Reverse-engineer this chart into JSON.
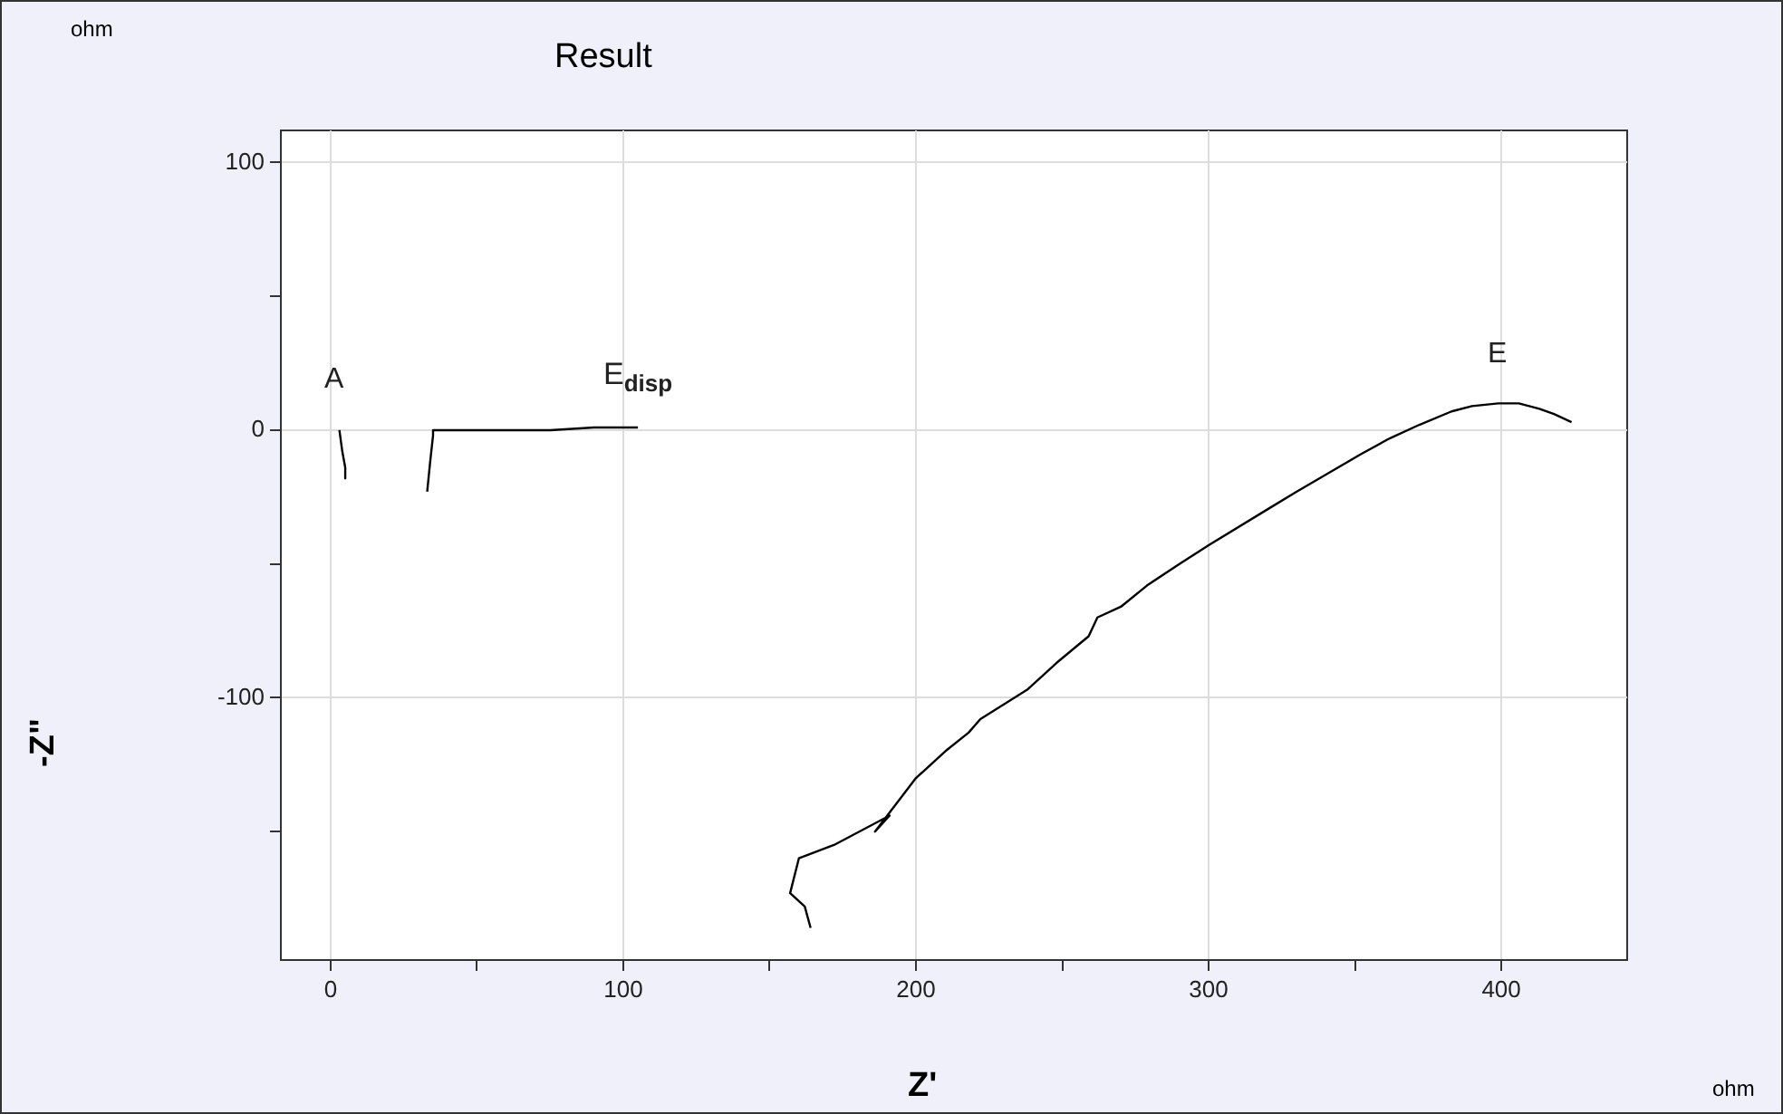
{
  "chart_data": {
    "type": "line",
    "title": "Result",
    "xlabel": "Z'",
    "ylabel": "-Z\"",
    "xlim": [
      -17,
      443
    ],
    "ylim": [
      -198,
      112
    ],
    "xticks": [
      0,
      {
        "value": 50,
        "label": null
      },
      100,
      {
        "value": 150,
        "label": null
      },
      200,
      {
        "value": 250,
        "label": null
      },
      300,
      {
        "value": 350,
        "label": null
      },
      400
    ],
    "yticks": [
      {
        "value": -150,
        "label": null
      },
      -100,
      {
        "value": -50,
        "label": null
      },
      0,
      {
        "value": 50,
        "label": null
      },
      100
    ],
    "grid": true,
    "legend": false,
    "marker": "none",
    "line_style": "solid",
    "series": [
      {
        "color": "#000000",
        "x": [
          3,
          4,
          5,
          5
        ],
        "values": [
          0,
          -8,
          -14,
          -18
        ]
      },
      {
        "color": "#000000",
        "x": [
          33,
          34,
          35,
          35,
          55,
          75,
          90,
          105
        ],
        "values": [
          -23,
          -12,
          -2,
          0,
          0,
          0,
          1,
          1
        ]
      },
      {
        "color": "#000000",
        "x": [
          164,
          162,
          157,
          160,
          172,
          191,
          186,
          200,
          210,
          218,
          222,
          238,
          248,
          259,
          262,
          270,
          279,
          290,
          300,
          321,
          330,
          341,
          352,
          362,
          372,
          383,
          390,
          399,
          406,
          413,
          418,
          424
        ],
        "values": [
          -186,
          -178,
          -173,
          -160,
          -155,
          -144,
          -150,
          -130,
          -120,
          -113,
          -108,
          -97,
          -87,
          -77,
          -70,
          -66,
          -58,
          -50,
          -43,
          -29,
          -23,
          -16,
          -9,
          -3,
          2,
          7,
          9,
          10,
          10,
          8,
          6,
          3
        ]
      }
    ],
    "annotations": [
      "A",
      "E$_{disp}$",
      "E",
      "ohm",
      "ohm"
    ]
  }
}
